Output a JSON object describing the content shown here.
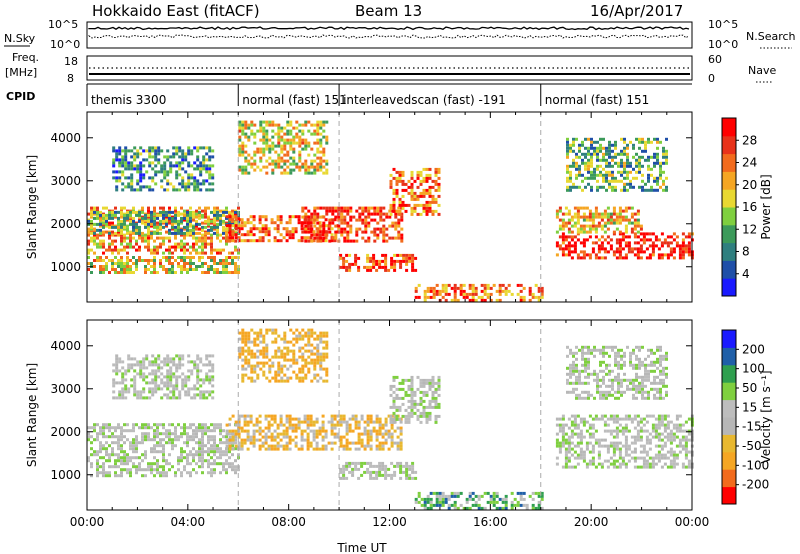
{
  "header": {
    "station": "Hokkaido East (fitACF)",
    "beam": "Beam 13",
    "date": "16/Apr/2017"
  },
  "noise_panel": {
    "left_label": "N.Sky",
    "left_ticks": [
      "10^5",
      "10^0"
    ],
    "right_label": "N.Search",
    "right_ticks": [
      "10^5",
      "10^0"
    ]
  },
  "freq_panel": {
    "left_label_line1": "Freq.",
    "left_label_line2": "[MHz]",
    "left_ticks": [
      "18",
      "8"
    ],
    "right_label": "Nave",
    "right_ticks": [
      "60",
      "0"
    ]
  },
  "cpid_panel": {
    "label": "CPID",
    "modes": [
      {
        "name": "themis 3300",
        "start_hour": 0
      },
      {
        "name": "normal (fast) 151",
        "start_hour": 6
      },
      {
        "name": "interleavedscan (fast) -191",
        "start_hour": 10
      },
      {
        "name": "normal (fast) 151",
        "start_hour": 18
      }
    ]
  },
  "colors": {
    "power_scale": [
      "#1a1aff",
      "#1f4fa8",
      "#2f7f7f",
      "#3c9a5a",
      "#7fcf3f",
      "#e8d832",
      "#f5a623",
      "#f26b1d",
      "#e8321a",
      "#ff0000"
    ],
    "velocity_scale": [
      "#ff0000",
      "#f26b1d",
      "#f5a623",
      "#e8b830",
      "#b7b7b7",
      "#bdbdbd",
      "#7fcf3f",
      "#2f9f4f",
      "#1f5fa8",
      "#1a1aff"
    ]
  },
  "power_colorbar": {
    "label": "Power [dB]",
    "ticks": [
      "28",
      "24",
      "20",
      "16",
      "12",
      "8",
      "4"
    ]
  },
  "velocity_colorbar": {
    "label": "Velocity [m s⁻¹]",
    "ticks": [
      "200",
      "100",
      "50",
      "15",
      "-15",
      "-50",
      "-100",
      "-200"
    ]
  },
  "chart_data": [
    {
      "type": "heatmap",
      "quantity": "Power",
      "ylabel": "Slant Range [km]",
      "xlim_hours": [
        0,
        24
      ],
      "ylim_km": [
        180,
        4600
      ],
      "ytick_values": [
        1000,
        2000,
        3000,
        4000
      ],
      "ytick_labels": [
        "1000",
        "2000",
        "3000",
        "4000"
      ],
      "xtick_hours": [
        0,
        4,
        8,
        12,
        16,
        20,
        24
      ],
      "xtick_labels": [
        "00:00",
        "04:00",
        "08:00",
        "12:00",
        "16:00",
        "20:00",
        "00:00"
      ],
      "zlim_db": [
        0,
        32
      ],
      "echo_regions": [
        {
          "t0": 0.0,
          "t1": 6.0,
          "r0": 1300,
          "r1": 2400,
          "level_db": 22
        },
        {
          "t0": 0.0,
          "t1": 6.0,
          "r0": 1800,
          "r1": 2300,
          "level_db": 12
        },
        {
          "t0": 0.0,
          "t1": 6.0,
          "r0": 900,
          "r1": 1250,
          "level_db": 18
        },
        {
          "t0": 1.0,
          "t1": 5.0,
          "r0": 2800,
          "r1": 3800,
          "level_db": 10
        },
        {
          "t0": 5.5,
          "t1": 10.0,
          "r0": 1600,
          "r1": 2200,
          "level_db": 26
        },
        {
          "t0": 6.0,
          "t1": 9.5,
          "r0": 3200,
          "r1": 4400,
          "level_db": 18
        },
        {
          "t0": 8.5,
          "t1": 12.5,
          "r0": 1600,
          "r1": 2400,
          "level_db": 28
        },
        {
          "t0": 10.0,
          "t1": 13.0,
          "r0": 900,
          "r1": 1300,
          "level_db": 26
        },
        {
          "t0": 12.0,
          "t1": 14.0,
          "r0": 2200,
          "r1": 3300,
          "level_db": 24
        },
        {
          "t0": 13.0,
          "t1": 18.0,
          "r0": 200,
          "r1": 600,
          "level_db": 24
        },
        {
          "t0": 18.6,
          "t1": 24.0,
          "r0": 1200,
          "r1": 1800,
          "level_db": 30
        },
        {
          "t0": 18.6,
          "t1": 22.0,
          "r0": 1800,
          "r1": 2400,
          "level_db": 20
        },
        {
          "t0": 19.0,
          "t1": 23.0,
          "r0": 2800,
          "r1": 4000,
          "level_db": 12
        }
      ]
    },
    {
      "type": "heatmap",
      "quantity": "Velocity",
      "ylabel": "Slant Range [km]",
      "xlabel": "Time UT",
      "xlim_hours": [
        0,
        24
      ],
      "ylim_km": [
        180,
        4600
      ],
      "ytick_values": [
        1000,
        2000,
        3000,
        4000
      ],
      "ytick_labels": [
        "1000",
        "2000",
        "3000",
        "4000"
      ],
      "xtick_hours": [
        0,
        4,
        8,
        12,
        16,
        20,
        24
      ],
      "xtick_labels": [
        "00:00",
        "04:00",
        "08:00",
        "12:00",
        "16:00",
        "20:00",
        "00:00"
      ],
      "zlim_ms": [
        -200,
        200
      ],
      "echo_regions": [
        {
          "t0": 0.0,
          "t1": 6.0,
          "r0": 1000,
          "r1": 2200,
          "velocity": 0
        },
        {
          "t0": 1.0,
          "t1": 5.0,
          "r0": 2800,
          "r1": 3800,
          "velocity": 0
        },
        {
          "t0": 6.0,
          "t1": 9.5,
          "r0": 3200,
          "r1": 4400,
          "velocity": -50
        },
        {
          "t0": 5.5,
          "t1": 12.5,
          "r0": 1600,
          "r1": 2400,
          "velocity": -40
        },
        {
          "t0": 10.0,
          "t1": 13.0,
          "r0": 900,
          "r1": 1300,
          "velocity": 0
        },
        {
          "t0": 12.0,
          "t1": 14.0,
          "r0": 2200,
          "r1": 3300,
          "velocity": 0
        },
        {
          "t0": 13.0,
          "t1": 18.0,
          "r0": 200,
          "r1": 600,
          "velocity": 30
        },
        {
          "t0": 18.6,
          "t1": 24.0,
          "r0": 1200,
          "r1": 2400,
          "velocity": 0
        },
        {
          "t0": 19.0,
          "t1": 23.0,
          "r0": 2800,
          "r1": 4000,
          "velocity": 0
        }
      ]
    }
  ]
}
